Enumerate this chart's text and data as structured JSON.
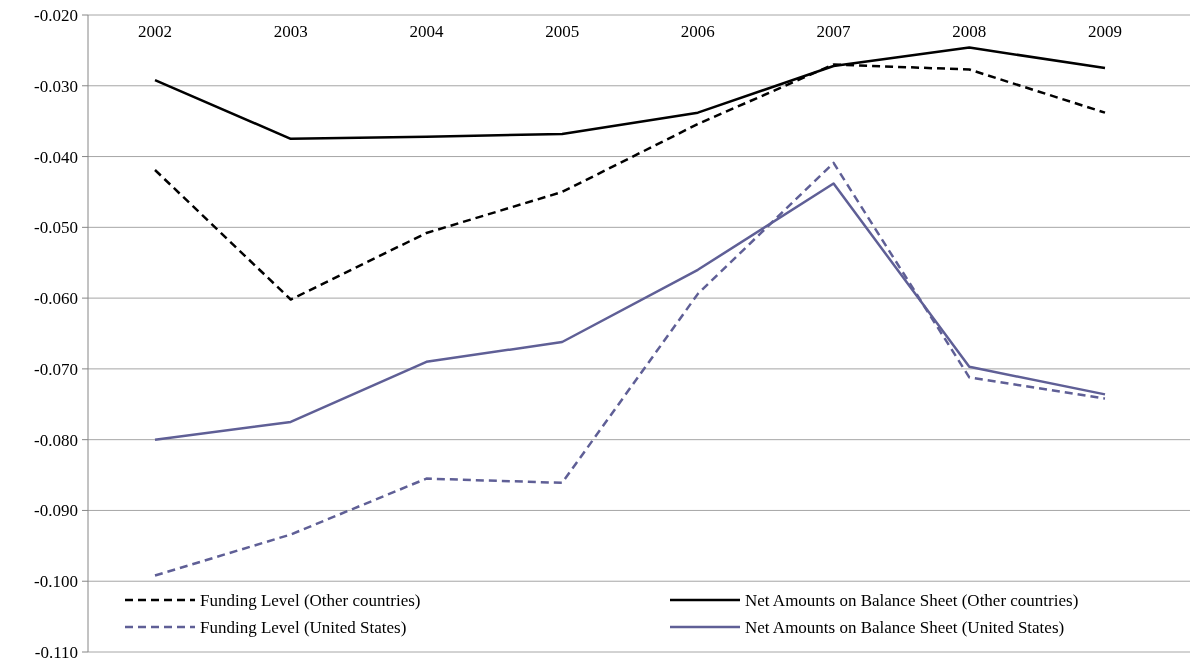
{
  "chart_data": {
    "type": "line",
    "categories": [
      "2002",
      "2003",
      "2004",
      "2005",
      "2006",
      "2007",
      "2008",
      "2009"
    ],
    "ylim": [
      -0.11,
      -0.02
    ],
    "yticks": [
      {
        "value": -0.11,
        "label": "-0.110"
      },
      {
        "value": -0.1,
        "label": "-0.100"
      },
      {
        "value": -0.09,
        "label": "-0.090"
      },
      {
        "value": -0.08,
        "label": "-0.080"
      },
      {
        "value": -0.07,
        "label": "-0.070"
      },
      {
        "value": -0.06,
        "label": "-0.060"
      },
      {
        "value": -0.05,
        "label": "-0.050"
      },
      {
        "value": -0.04,
        "label": "-0.040"
      },
      {
        "value": -0.03,
        "label": "-0.030"
      },
      {
        "value": -0.02,
        "label": "-0.020"
      }
    ],
    "grid": "y",
    "legend": "bottom",
    "marker": "none",
    "series": [
      {
        "name": "Funding Level (Other countries)",
        "color": "#000000",
        "line_style": "dashed",
        "values": [
          -0.0419,
          -0.0602,
          -0.0508,
          -0.045,
          -0.0354,
          -0.027,
          -0.0277,
          -0.0338
        ]
      },
      {
        "name": "Net Amounts on Balance Sheet (Other countries)",
        "color": "#000000",
        "line_style": "solid",
        "values": [
          -0.0292,
          -0.0375,
          -0.0372,
          -0.0368,
          -0.0338,
          -0.0272,
          -0.0246,
          -0.0275
        ]
      },
      {
        "name": "Funding Level (United States)",
        "color": "#5f5f96",
        "line_style": "dashed",
        "values": [
          -0.0992,
          -0.0934,
          -0.0855,
          -0.0861,
          -0.0594,
          -0.0409,
          -0.0712,
          -0.0742
        ]
      },
      {
        "name": "Net Amounts on Balance Sheet (United States)",
        "color": "#5f5f96",
        "line_style": "solid",
        "values": [
          -0.08,
          -0.0775,
          -0.069,
          -0.0662,
          -0.056,
          -0.0438,
          -0.0697,
          -0.0736
        ]
      }
    ]
  }
}
